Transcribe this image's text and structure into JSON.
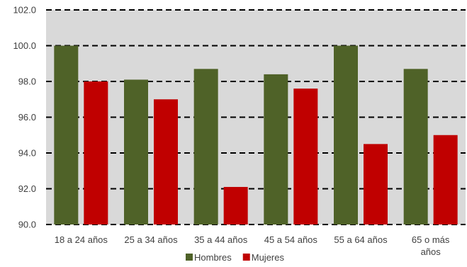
{
  "chart_data": {
    "type": "bar",
    "title": "",
    "xlabel": "",
    "ylabel": "",
    "categories": [
      [
        "18 a 24 años"
      ],
      [
        "25 a 34 años"
      ],
      [
        "35 a 44 años"
      ],
      [
        "45 a 54 años"
      ],
      [
        "55 a 64 años"
      ],
      [
        "65 o más",
        "años"
      ]
    ],
    "series": [
      {
        "name": "Hombres",
        "color": "#4f6228",
        "values": [
          100.0,
          98.1,
          98.7,
          98.4,
          100.0,
          98.7
        ]
      },
      {
        "name": "Mujeres",
        "color": "#c00000",
        "values": [
          98.0,
          97.0,
          92.1,
          97.6,
          94.5,
          95.0
        ]
      }
    ],
    "ylim": [
      90.0,
      102.0
    ],
    "yticks": [
      "90.0",
      "92.0",
      "94.0",
      "96.0",
      "98.0",
      "100.0",
      "102.0"
    ],
    "grid": true,
    "plot_background": "#d9d9d9",
    "legend_position": "bottom"
  }
}
